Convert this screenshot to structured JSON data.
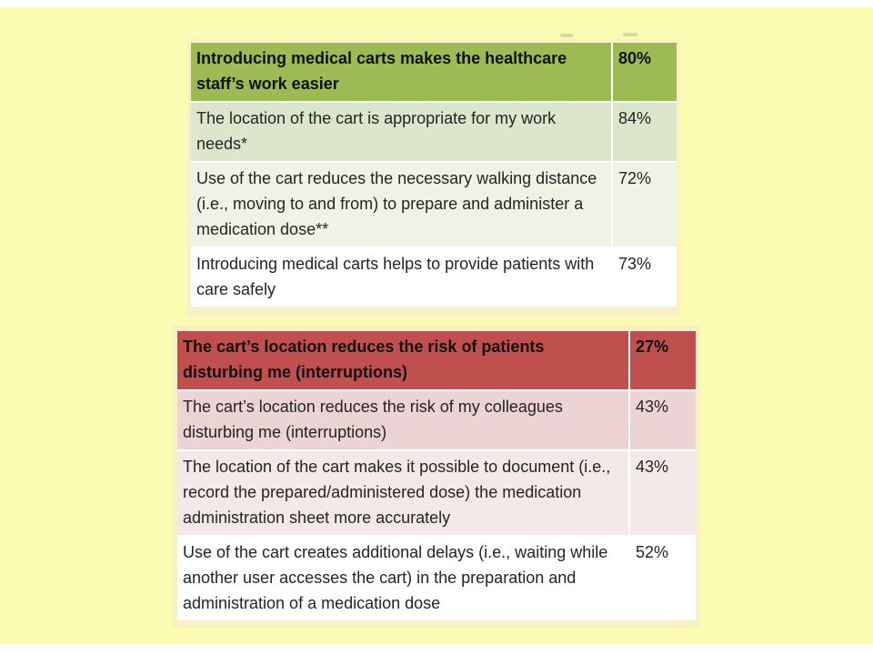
{
  "background_color": "#fbfbb2",
  "frame_color": "#faf0c6",
  "chart_data": [
    {
      "type": "table",
      "title": "",
      "accent": "#9cbb55",
      "row_colors": [
        "#9cbb55",
        "#dce6cb",
        "#eff3e6",
        "#ffffff"
      ],
      "rows": [
        {
          "label": "Introducing medical carts makes the healthcare staff’s work easier",
          "value": "80%"
        },
        {
          "label": "The location of the cart is appropriate for my work needs*",
          "value": "84%"
        },
        {
          "label": "Use of the cart reduces the necessary walking distance (i.e., moving to and from) to prepare and administer a medication dose**",
          "value": "72%"
        },
        {
          "label": "Introducing medical carts helps to provide patients with care safely",
          "value": "73%"
        }
      ]
    },
    {
      "type": "table",
      "title": "",
      "accent": "#c0504d",
      "row_colors": [
        "#c0504d",
        "#ecd3d4",
        "#f3e9e9",
        "#ffffff"
      ],
      "rows": [
        {
          "label": "The cart’s location reduces the risk of patients disturbing me (interruptions)",
          "value": "27%"
        },
        {
          "label": "The cart’s location reduces the risk of my colleagues disturbing me (interruptions)",
          "value": "43%"
        },
        {
          "label": "The location of the cart makes it possible to document (i.e., record the prepared/administered dose) the medication administration sheet more accurately",
          "value": "43%"
        },
        {
          "label": "Use of the cart creates additional delays (i.e., waiting while another user accesses the cart) in the preparation and administration of a medication dose",
          "value": "52%"
        }
      ]
    }
  ]
}
